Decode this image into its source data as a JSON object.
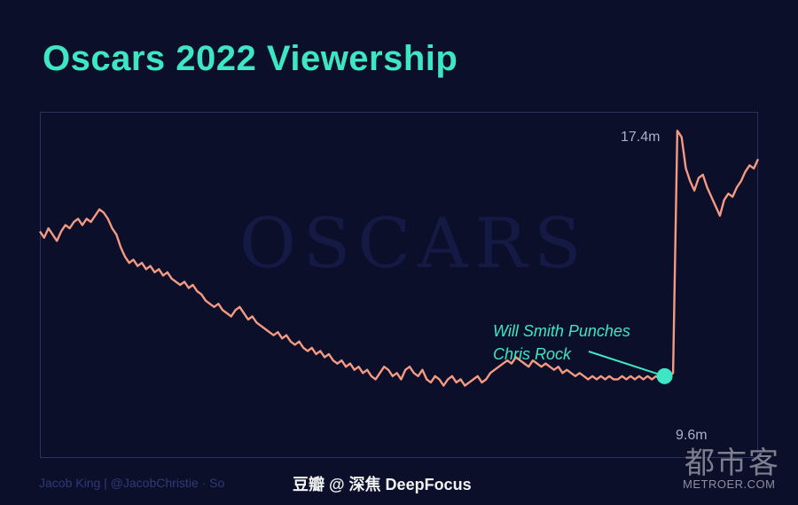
{
  "header": {
    "title": "Oscars 2022 Viewership"
  },
  "watermark": {
    "logo_text": "OSCARS"
  },
  "annotation": {
    "line1": "Will Smith Punches",
    "line2": "Chris Rock"
  },
  "credit_text": "Jacob King | @JacobChristie · So",
  "source_text": "豆瓣  @ 深焦 DeepFocus",
  "site": {
    "cn": "都市客",
    "en": "METROER.COM"
  },
  "colors": {
    "line": "#f49a82",
    "accent": "#3ee6c4",
    "background": "#0b0f2a"
  },
  "chart_data": {
    "type": "line",
    "title": "Oscars 2022 Viewership",
    "xlabel": "",
    "ylabel": "",
    "ylim": [
      7.0,
      18.0
    ],
    "annotations": [
      {
        "label": "9.6m",
        "index": 147,
        "value": 9.6
      },
      {
        "label": "17.4m",
        "index": 150,
        "value": 17.4
      },
      {
        "label": "Will Smith Punches Chris Rock",
        "index": 147,
        "value": 9.6
      }
    ],
    "series": [
      {
        "values": [
          14.2,
          14.0,
          14.3,
          14.1,
          13.9,
          14.2,
          14.4,
          14.3,
          14.5,
          14.6,
          14.4,
          14.6,
          14.5,
          14.7,
          14.9,
          14.8,
          14.6,
          14.3,
          14.1,
          13.7,
          13.4,
          13.2,
          13.3,
          13.1,
          13.2,
          13.0,
          13.1,
          12.9,
          13.0,
          12.8,
          12.9,
          12.7,
          12.6,
          12.5,
          12.6,
          12.4,
          12.5,
          12.3,
          12.2,
          12.0,
          11.9,
          11.8,
          11.9,
          11.7,
          11.6,
          11.5,
          11.7,
          11.8,
          11.6,
          11.4,
          11.5,
          11.3,
          11.2,
          11.1,
          11.0,
          10.9,
          11.0,
          10.8,
          10.9,
          10.7,
          10.6,
          10.7,
          10.5,
          10.4,
          10.5,
          10.3,
          10.4,
          10.2,
          10.3,
          10.1,
          10.0,
          10.1,
          9.9,
          10.0,
          9.8,
          9.9,
          9.7,
          9.8,
          9.6,
          9.5,
          9.7,
          9.9,
          9.8,
          9.6,
          9.7,
          9.5,
          9.8,
          9.9,
          9.7,
          9.6,
          9.8,
          9.5,
          9.4,
          9.6,
          9.5,
          9.3,
          9.5,
          9.6,
          9.4,
          9.5,
          9.3,
          9.4,
          9.5,
          9.6,
          9.4,
          9.5,
          9.7,
          9.8,
          9.9,
          10.0,
          10.1,
          10.0,
          10.2,
          10.1,
          10.0,
          9.9,
          10.1,
          10.0,
          9.9,
          10.0,
          9.9,
          9.8,
          9.9,
          9.7,
          9.8,
          9.7,
          9.6,
          9.7,
          9.6,
          9.5,
          9.6,
          9.5,
          9.6,
          9.5,
          9.6,
          9.5,
          9.5,
          9.6,
          9.5,
          9.6,
          9.5,
          9.6,
          9.5,
          9.6,
          9.5,
          9.6,
          9.5,
          9.6,
          9.6,
          9.7,
          17.4,
          17.2,
          16.2,
          15.8,
          15.5,
          15.9,
          16.0,
          15.6,
          15.3,
          15.0,
          14.7,
          15.2,
          15.4,
          15.3,
          15.6,
          15.8,
          16.1,
          16.3,
          16.2,
          16.5
        ]
      }
    ]
  }
}
